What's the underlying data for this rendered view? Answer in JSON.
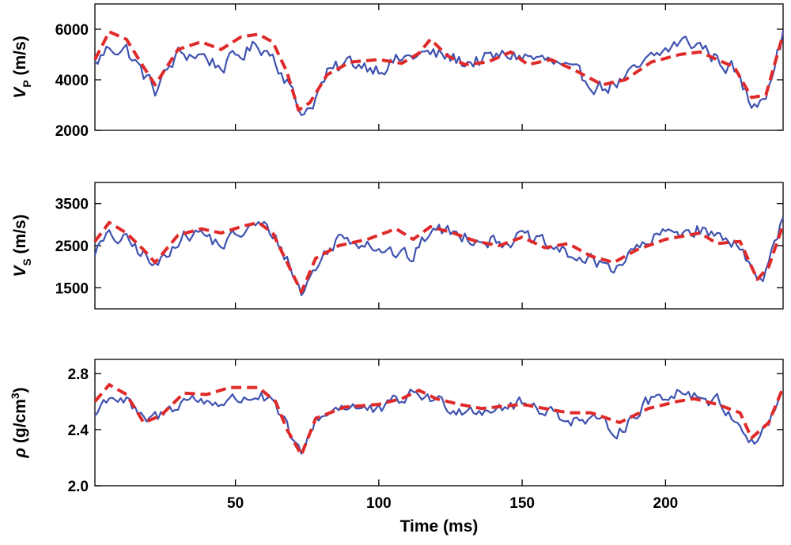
{
  "chart_data": {
    "type": "line",
    "x_axis": {
      "label": "Time (ms)",
      "ticks": [
        50,
        100,
        150,
        200
      ],
      "range": [
        1,
        241
      ]
    },
    "colors": {
      "observed": "#3f52b0",
      "model": "#e02a2a"
    },
    "panels": [
      {
        "id": "vp",
        "ylabel_symbol": "V",
        "ylabel_sub": "P",
        "ylabel_sup": "",
        "ylabel_unit": " (m/s)",
        "ylim": [
          2000,
          7000
        ],
        "yticks": [
          "2000",
          "4000",
          "6000"
        ],
        "smooth": [
          [
            1,
            4800
          ],
          [
            6,
            5900
          ],
          [
            12,
            5600
          ],
          [
            18,
            4500
          ],
          [
            22,
            3800
          ],
          [
            30,
            5200
          ],
          [
            38,
            5500
          ],
          [
            45,
            5200
          ],
          [
            52,
            5700
          ],
          [
            58,
            5800
          ],
          [
            63,
            5500
          ],
          [
            68,
            4300
          ],
          [
            72,
            2800
          ],
          [
            76,
            3100
          ],
          [
            82,
            4200
          ],
          [
            90,
            4700
          ],
          [
            100,
            4800
          ],
          [
            108,
            4650
          ],
          [
            114,
            5050
          ],
          [
            118,
            5600
          ],
          [
            124,
            4950
          ],
          [
            130,
            4600
          ],
          [
            138,
            4700
          ],
          [
            146,
            5100
          ],
          [
            152,
            4600
          ],
          [
            160,
            4800
          ],
          [
            168,
            4400
          ],
          [
            178,
            3800
          ],
          [
            186,
            4000
          ],
          [
            195,
            4700
          ],
          [
            205,
            5000
          ],
          [
            212,
            5100
          ],
          [
            218,
            4800
          ],
          [
            224,
            4500
          ],
          [
            230,
            3300
          ],
          [
            235,
            3400
          ],
          [
            241,
            5800
          ]
        ],
        "observed_base": [
          [
            1,
            4600
          ],
          [
            6,
            5300
          ],
          [
            12,
            5200
          ],
          [
            18,
            4200
          ],
          [
            22,
            3600
          ],
          [
            30,
            5000
          ],
          [
            38,
            5000
          ],
          [
            45,
            4500
          ],
          [
            52,
            5000
          ],
          [
            58,
            5400
          ],
          [
            63,
            5000
          ],
          [
            68,
            4000
          ],
          [
            72,
            2800
          ],
          [
            76,
            2900
          ],
          [
            82,
            4200
          ],
          [
            90,
            4700
          ],
          [
            100,
            4500
          ],
          [
            108,
            4800
          ],
          [
            114,
            5000
          ],
          [
            118,
            5000
          ],
          [
            124,
            4900
          ],
          [
            130,
            4700
          ],
          [
            138,
            4800
          ],
          [
            146,
            5000
          ],
          [
            152,
            4900
          ],
          [
            160,
            4700
          ],
          [
            168,
            4200
          ],
          [
            178,
            3700
          ],
          [
            186,
            4000
          ],
          [
            195,
            4800
          ],
          [
            205,
            5500
          ],
          [
            212,
            5400
          ],
          [
            218,
            4800
          ],
          [
            224,
            4400
          ],
          [
            230,
            3000
          ],
          [
            235,
            3600
          ],
          [
            241,
            5800
          ]
        ],
        "noise": 380
      },
      {
        "id": "vs",
        "ylabel_symbol": "V",
        "ylabel_sub": "S",
        "ylabel_sup": "",
        "ylabel_unit": " (m/s)",
        "ylim": [
          1000,
          4000
        ],
        "yticks": [
          "1500",
          "2500",
          "3500"
        ],
        "smooth": [
          [
            1,
            2600
          ],
          [
            6,
            3050
          ],
          [
            12,
            2800
          ],
          [
            18,
            2400
          ],
          [
            22,
            2100
          ],
          [
            30,
            2750
          ],
          [
            38,
            2900
          ],
          [
            45,
            2800
          ],
          [
            52,
            2950
          ],
          [
            58,
            3050
          ],
          [
            63,
            2800
          ],
          [
            68,
            2100
          ],
          [
            73,
            1400
          ],
          [
            78,
            2200
          ],
          [
            86,
            2500
          ],
          [
            96,
            2650
          ],
          [
            106,
            2900
          ],
          [
            112,
            2650
          ],
          [
            118,
            2950
          ],
          [
            126,
            2800
          ],
          [
            134,
            2600
          ],
          [
            142,
            2500
          ],
          [
            150,
            2700
          ],
          [
            158,
            2450
          ],
          [
            166,
            2550
          ],
          [
            174,
            2250
          ],
          [
            182,
            2100
          ],
          [
            190,
            2400
          ],
          [
            200,
            2650
          ],
          [
            212,
            2800
          ],
          [
            218,
            2550
          ],
          [
            226,
            2600
          ],
          [
            232,
            1700
          ],
          [
            236,
            2000
          ],
          [
            241,
            3000
          ]
        ],
        "observed_base": [
          [
            1,
            2400
          ],
          [
            6,
            2700
          ],
          [
            12,
            2600
          ],
          [
            18,
            2300
          ],
          [
            22,
            1950
          ],
          [
            30,
            2700
          ],
          [
            38,
            2800
          ],
          [
            45,
            2500
          ],
          [
            52,
            2800
          ],
          [
            58,
            3000
          ],
          [
            63,
            2800
          ],
          [
            68,
            2200
          ],
          [
            73,
            1350
          ],
          [
            78,
            2000
          ],
          [
            86,
            2700
          ],
          [
            96,
            2600
          ],
          [
            106,
            2300
          ],
          [
            112,
            2200
          ],
          [
            118,
            2900
          ],
          [
            126,
            2800
          ],
          [
            134,
            2700
          ],
          [
            142,
            2600
          ],
          [
            150,
            2700
          ],
          [
            158,
            2500
          ],
          [
            166,
            2300
          ],
          [
            174,
            2100
          ],
          [
            182,
            2000
          ],
          [
            190,
            2400
          ],
          [
            200,
            2800
          ],
          [
            212,
            2900
          ],
          [
            218,
            2700
          ],
          [
            226,
            2600
          ],
          [
            232,
            1600
          ],
          [
            236,
            2000
          ],
          [
            241,
            3100
          ]
        ],
        "noise": 210
      },
      {
        "id": "rho",
        "ylabel_symbol": "ρ",
        "ylabel_sub": "",
        "ylabel_sup": "3",
        "ylabel_unit": " (g/cm",
        "ylabel_tail": ")",
        "ylim": [
          2.0,
          2.9
        ],
        "yticks": [
          "2.0",
          "2.4",
          "2.8"
        ],
        "smooth": [
          [
            1,
            2.6
          ],
          [
            6,
            2.72
          ],
          [
            12,
            2.65
          ],
          [
            18,
            2.45
          ],
          [
            24,
            2.5
          ],
          [
            32,
            2.66
          ],
          [
            40,
            2.65
          ],
          [
            48,
            2.7
          ],
          [
            58,
            2.7
          ],
          [
            64,
            2.6
          ],
          [
            68,
            2.4
          ],
          [
            73,
            2.22
          ],
          [
            78,
            2.48
          ],
          [
            88,
            2.56
          ],
          [
            100,
            2.58
          ],
          [
            108,
            2.62
          ],
          [
            114,
            2.68
          ],
          [
            120,
            2.62
          ],
          [
            128,
            2.58
          ],
          [
            136,
            2.55
          ],
          [
            150,
            2.58
          ],
          [
            158,
            2.55
          ],
          [
            166,
            2.52
          ],
          [
            174,
            2.52
          ],
          [
            184,
            2.45
          ],
          [
            194,
            2.55
          ],
          [
            204,
            2.6
          ],
          [
            210,
            2.62
          ],
          [
            218,
            2.58
          ],
          [
            226,
            2.52
          ],
          [
            230,
            2.34
          ],
          [
            236,
            2.45
          ],
          [
            241,
            2.7
          ]
        ],
        "observed_base": [
          [
            1,
            2.5
          ],
          [
            6,
            2.65
          ],
          [
            12,
            2.6
          ],
          [
            18,
            2.45
          ],
          [
            24,
            2.5
          ],
          [
            32,
            2.62
          ],
          [
            40,
            2.6
          ],
          [
            48,
            2.6
          ],
          [
            58,
            2.65
          ],
          [
            64,
            2.55
          ],
          [
            68,
            2.4
          ],
          [
            73,
            2.2
          ],
          [
            78,
            2.48
          ],
          [
            88,
            2.58
          ],
          [
            100,
            2.52
          ],
          [
            108,
            2.62
          ],
          [
            114,
            2.66
          ],
          [
            120,
            2.6
          ],
          [
            128,
            2.55
          ],
          [
            136,
            2.55
          ],
          [
            150,
            2.58
          ],
          [
            158,
            2.55
          ],
          [
            166,
            2.48
          ],
          [
            174,
            2.45
          ],
          [
            184,
            2.4
          ],
          [
            194,
            2.6
          ],
          [
            204,
            2.68
          ],
          [
            210,
            2.65
          ],
          [
            218,
            2.6
          ],
          [
            226,
            2.45
          ],
          [
            230,
            2.3
          ],
          [
            236,
            2.45
          ],
          [
            241,
            2.68
          ]
        ],
        "noise": 0.06
      }
    ]
  }
}
